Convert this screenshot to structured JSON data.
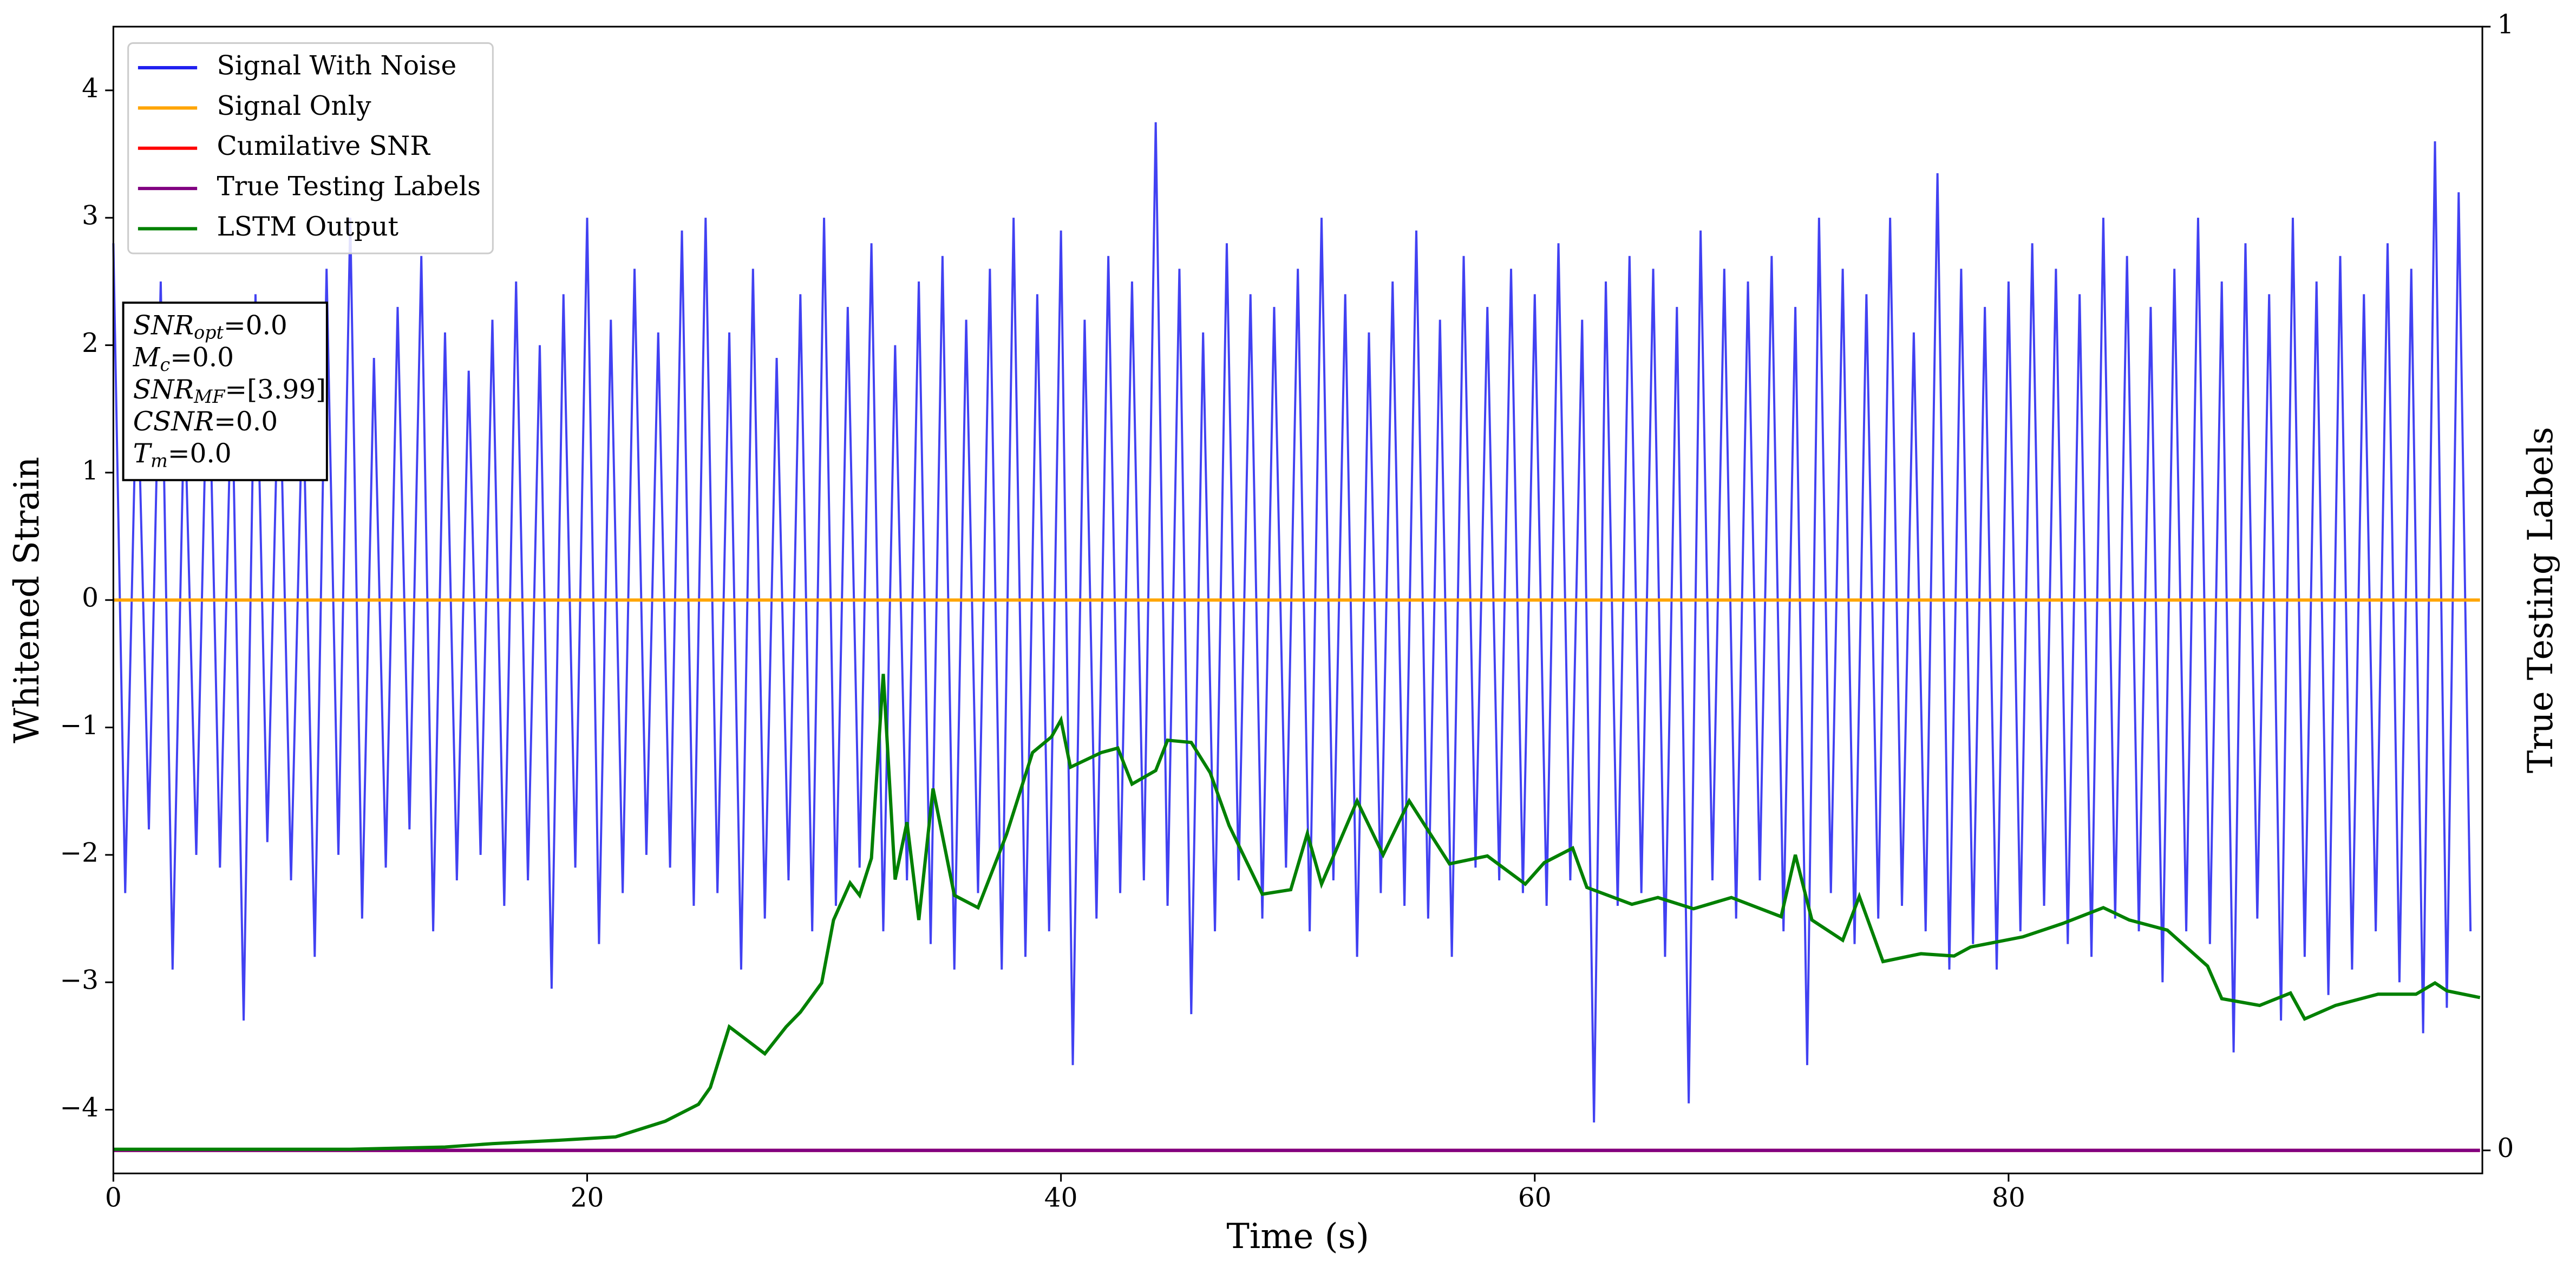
{
  "chart_data": {
    "type": "line",
    "xlabel": "Time (s)",
    "ylabel": "Whitened Strain",
    "y2label": "True Testing Labels",
    "xlim": [
      0,
      100
    ],
    "xticks": [
      0,
      20,
      40,
      60,
      80
    ],
    "ylim": [
      -4.5,
      4.5
    ],
    "yticks": [
      {
        "value": -4,
        "label": "−4"
      },
      {
        "value": -3,
        "label": "−3"
      },
      {
        "value": -2,
        "label": "−2"
      },
      {
        "value": -1,
        "label": "−1"
      },
      0,
      1,
      2,
      3,
      4
    ],
    "y2lim": [
      -0.0205,
      1.0
    ],
    "y2ticks": [
      0,
      1
    ],
    "legend": "upper left",
    "annotation": [
      [
        "SNR",
        "opt",
        "=0.0"
      ],
      [
        "M",
        "c",
        "=0.0"
      ],
      [
        "SNR",
        "MF",
        "=[3.99]"
      ],
      [
        "CSNR",
        "=0.0"
      ],
      [
        "T",
        "m",
        "=0.0"
      ]
    ],
    "series": [
      {
        "name": "Signal With Noise",
        "color": "#2020f0",
        "x": [
          0,
          0.5,
          1,
          1.5,
          2,
          2.5,
          3,
          3.5,
          4,
          4.5,
          5,
          5.5,
          6,
          6.5,
          7,
          7.5,
          8,
          8.5,
          9,
          9.5,
          10,
          10.5,
          11,
          11.5,
          12,
          12.5,
          13,
          13.5,
          14,
          14.5,
          15,
          15.5,
          16,
          16.5,
          17,
          17.5,
          18,
          18.5,
          19,
          19.5,
          20,
          20.5,
          21,
          21.5,
          22,
          22.5,
          23,
          23.5,
          24,
          24.5,
          25,
          25.5,
          26,
          26.5,
          27,
          27.5,
          28,
          28.5,
          29,
          29.5,
          30,
          30.5,
          31,
          31.5,
          32,
          32.5,
          33,
          33.5,
          34,
          34.5,
          35,
          35.5,
          36,
          36.5,
          37,
          37.5,
          38,
          38.5,
          39,
          39.5,
          40,
          40.5,
          41,
          41.5,
          42,
          42.5,
          43,
          43.5,
          44,
          44.5,
          45,
          45.5,
          46,
          46.5,
          47,
          47.5,
          48,
          48.5,
          49,
          49.5,
          50,
          50.5,
          51,
          51.5,
          52,
          52.5,
          53,
          53.5,
          54,
          54.5,
          55,
          55.5,
          56,
          56.5,
          57,
          57.5,
          58,
          58.5,
          59,
          59.5,
          60,
          60.5,
          61,
          61.5,
          62,
          62.5,
          63,
          63.5,
          64,
          64.5,
          65,
          65.5,
          66,
          66.5,
          67,
          67.5,
          68,
          68.5,
          69,
          69.5,
          70,
          70.5,
          71,
          71.5,
          72,
          72.5,
          73,
          73.5,
          74,
          74.5,
          75,
          75.5,
          76,
          76.5,
          77,
          77.5,
          78,
          78.5,
          79,
          79.5,
          80,
          80.5,
          81,
          81.5,
          82,
          82.5,
          83,
          83.5,
          84,
          84.5,
          85,
          85.5,
          86,
          86.5,
          87,
          87.5,
          88,
          88.5,
          89,
          89.5,
          90,
          90.5,
          91,
          91.5,
          92,
          92.5,
          93,
          93.5,
          94,
          94.5,
          95,
          95.5,
          96,
          96.5,
          97,
          97.5,
          98,
          98.5,
          99,
          99.5
        ],
        "values": [
          2.8,
          -2.3,
          1.9,
          -1.8,
          2.5,
          -2.9,
          1.6,
          -2.0,
          2.2,
          -2.1,
          1.8,
          -3.3,
          2.4,
          -1.9,
          2.0,
          -2.2,
          1.7,
          -2.8,
          2.6,
          -2.0,
          3.0,
          -2.5,
          1.9,
          -2.1,
          2.3,
          -1.8,
          2.7,
          -2.6,
          2.1,
          -2.2,
          1.8,
          -2.0,
          2.2,
          -2.4,
          2.5,
          -2.2,
          2.0,
          -3.05,
          2.4,
          -2.1,
          3.0,
          -2.7,
          2.2,
          -2.3,
          2.6,
          -2.0,
          2.1,
          -2.1,
          2.9,
          -2.4,
          3.0,
          -2.3,
          2.1,
          -2.9,
          2.6,
          -2.5,
          1.9,
          -2.2,
          2.4,
          -2.6,
          3.0,
          -2.4,
          2.3,
          -2.1,
          2.8,
          -2.6,
          2.0,
          -2.2,
          2.5,
          -2.7,
          2.7,
          -2.9,
          2.2,
          -2.3,
          2.6,
          -2.9,
          3.0,
          -2.8,
          2.4,
          -2.6,
          2.9,
          -3.65,
          2.2,
          -2.5,
          2.7,
          -2.3,
          2.5,
          -2.2,
          3.75,
          -2.4,
          2.6,
          -3.25,
          2.1,
          -2.6,
          2.8,
          -2.2,
          2.4,
          -2.5,
          2.3,
          -2.1,
          2.6,
          -2.6,
          3.0,
          -2.2,
          2.4,
          -2.8,
          2.1,
          -2.3,
          2.5,
          -2.4,
          2.9,
          -2.5,
          2.2,
          -2.8,
          2.7,
          -2.1,
          2.3,
          -2.2,
          2.6,
          -2.3,
          2.4,
          -2.4,
          2.8,
          -2.2,
          2.2,
          -4.1,
          2.5,
          -2.4,
          2.7,
          -2.3,
          2.6,
          -2.8,
          2.3,
          -3.95,
          2.9,
          -2.2,
          2.6,
          -2.5,
          2.5,
          -2.2,
          2.7,
          -2.6,
          2.3,
          -3.65,
          3.0,
          -2.3,
          2.6,
          -2.7,
          2.4,
          -2.5,
          3.0,
          -2.4,
          2.1,
          -2.6,
          3.35,
          -2.9,
          2.6,
          -2.7,
          2.3,
          -2.9,
          2.5,
          -2.6,
          2.8,
          -2.4,
          2.6,
          -2.7,
          2.4,
          -2.8,
          3.0,
          -2.5,
          2.7,
          -2.6,
          2.3,
          -3.0,
          2.6,
          -2.6,
          3.0,
          -2.7,
          2.5,
          -3.55,
          2.8,
          -2.5,
          2.4,
          -3.3,
          3.0,
          -2.8,
          2.5,
          -3.1,
          2.7,
          -2.9,
          2.4,
          -2.6,
          2.8,
          -3.0,
          2.6,
          -3.4,
          3.6,
          -3.2,
          3.2,
          -2.6
        ]
      },
      {
        "name": "Signal Only",
        "color": "#ffa500",
        "x": [
          0,
          99.9
        ],
        "values": [
          0,
          0
        ]
      },
      {
        "name": "Cumilative SNR",
        "color": "#ff0000",
        "axis": "y2",
        "x": [
          0,
          99.9
        ],
        "values": [
          0,
          0
        ]
      },
      {
        "name": "True Testing Labels",
        "color": "#800080",
        "axis": "y2",
        "x": [
          0,
          99.9
        ],
        "values": [
          0,
          0
        ]
      },
      {
        "name": "LSTM Output",
        "color": "#008000",
        "axis": "y2",
        "x": [
          0,
          10,
          14,
          16,
          18.8,
          21.2,
          23.3,
          24.7,
          25.2,
          26,
          27.5,
          28.4,
          29,
          29.9,
          30.4,
          31.1,
          31.5,
          32,
          32.5,
          33,
          33.5,
          34,
          34.6,
          35.5,
          36.5,
          37.7,
          38.8,
          39.6,
          40,
          40.4,
          41.7,
          42.4,
          43,
          44,
          44.5,
          45.5,
          46.3,
          47.1,
          48.5,
          49.7,
          50.4,
          51,
          52.5,
          53.6,
          54.7,
          56.4,
          58,
          59.6,
          60.4,
          61.6,
          62.2,
          64.1,
          65.2,
          66.7,
          68.3,
          70.4,
          71,
          71.7,
          73,
          73.7,
          74.7,
          76.3,
          77.7,
          78.4,
          80.6,
          82.3,
          84,
          85.1,
          86.7,
          88.4,
          89,
          90.6,
          91.9,
          92.5,
          93.8,
          95.6,
          97.2,
          98,
          98.5,
          99.9
        ],
        "values": [
          0.001,
          0.001,
          0.003,
          0.006,
          0.009,
          0.012,
          0.026,
          0.041,
          0.056,
          0.11,
          0.086,
          0.11,
          0.123,
          0.149,
          0.205,
          0.238,
          0.227,
          0.26,
          0.424,
          0.241,
          0.292,
          0.205,
          0.322,
          0.227,
          0.216,
          0.281,
          0.354,
          0.368,
          0.383,
          0.341,
          0.354,
          0.358,
          0.326,
          0.338,
          0.365,
          0.363,
          0.336,
          0.289,
          0.228,
          0.232,
          0.282,
          0.237,
          0.311,
          0.263,
          0.311,
          0.255,
          0.262,
          0.237,
          0.256,
          0.269,
          0.234,
          0.219,
          0.225,
          0.215,
          0.225,
          0.208,
          0.263,
          0.205,
          0.187,
          0.226,
          0.168,
          0.175,
          0.173,
          0.181,
          0.19,
          0.202,
          0.216,
          0.205,
          0.196,
          0.164,
          0.135,
          0.129,
          0.14,
          0.117,
          0.129,
          0.139,
          0.139,
          0.149,
          0.142,
          0.136
        ]
      }
    ]
  }
}
